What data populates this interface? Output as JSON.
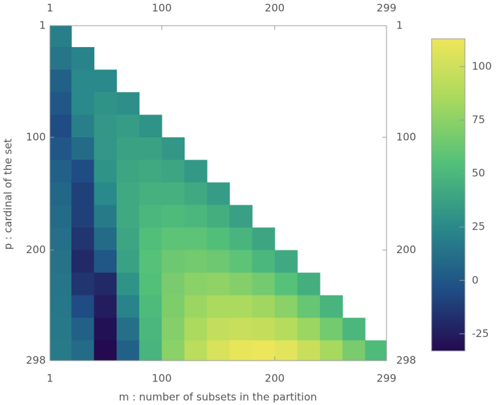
{
  "chart_data": {
    "type": "heatmap",
    "xlabel": "m : number of subsets in the partition",
    "ylabel": "p : cardinal of the set",
    "x": [
      10,
      30,
      50,
      70,
      90,
      110,
      130,
      150,
      170,
      190,
      210,
      230,
      250,
      270,
      290
    ],
    "y": [
      10,
      30,
      50,
      70,
      90,
      110,
      130,
      150,
      170,
      190,
      210,
      230,
      250,
      270,
      290
    ],
    "values": [
      [
        20,
        null,
        null,
        null,
        null,
        null,
        null,
        null,
        null,
        null,
        null,
        null,
        null,
        null,
        null
      ],
      [
        15,
        22,
        null,
        null,
        null,
        null,
        null,
        null,
        null,
        null,
        null,
        null,
        null,
        null,
        null
      ],
      [
        5,
        25,
        25,
        null,
        null,
        null,
        null,
        null,
        null,
        null,
        null,
        null,
        null,
        null,
        null
      ],
      [
        0,
        25,
        30,
        28,
        null,
        null,
        null,
        null,
        null,
        null,
        null,
        null,
        null,
        null,
        null
      ],
      [
        -5,
        20,
        32,
        35,
        30,
        null,
        null,
        null,
        null,
        null,
        null,
        null,
        null,
        null,
        null
      ],
      [
        0,
        10,
        32,
        38,
        38,
        32,
        null,
        null,
        null,
        null,
        null,
        null,
        null,
        null,
        null
      ],
      [
        5,
        -5,
        30,
        40,
        42,
        40,
        33,
        null,
        null,
        null,
        null,
        null,
        null,
        null,
        null
      ],
      [
        8,
        -10,
        25,
        42,
        46,
        46,
        42,
        35,
        null,
        null,
        null,
        null,
        null,
        null,
        null
      ],
      [
        10,
        -10,
        18,
        42,
        50,
        52,
        50,
        45,
        37,
        null,
        null,
        null,
        null,
        null,
        null
      ],
      [
        12,
        -15,
        10,
        40,
        54,
        58,
        58,
        54,
        48,
        40,
        null,
        null,
        null,
        null,
        null
      ],
      [
        14,
        -20,
        0,
        38,
        56,
        64,
        66,
        64,
        58,
        50,
        42,
        null,
        null,
        null,
        null
      ],
      [
        15,
        -15,
        -20,
        30,
        55,
        68,
        74,
        76,
        72,
        66,
        56,
        45,
        null,
        null,
        null
      ],
      [
        16,
        -5,
        -25,
        22,
        52,
        70,
        80,
        86,
        86,
        82,
        74,
        62,
        48,
        null,
        null
      ],
      [
        17,
        5,
        -30,
        12,
        50,
        72,
        86,
        95,
        98,
        96,
        90,
        80,
        66,
        50,
        null
      ],
      [
        18,
        10,
        -33,
        5,
        48,
        74,
        92,
        104,
        110,
        112,
        108,
        98,
        84,
        68,
        52
      ]
    ],
    "xlim": [
      1,
      299
    ],
    "ylim": [
      1,
      298
    ],
    "xticks": [
      1,
      100,
      200,
      299
    ],
    "yticks": [
      1,
      100,
      200,
      298
    ],
    "clim": [
      -33,
      113
    ],
    "cticks": [
      -25,
      0,
      25,
      50,
      75,
      100
    ],
    "colors": [
      "#240a4f",
      "#1f4f86",
      "#2a8a8a",
      "#52c07a",
      "#a6d95e",
      "#eee65a"
    ]
  }
}
